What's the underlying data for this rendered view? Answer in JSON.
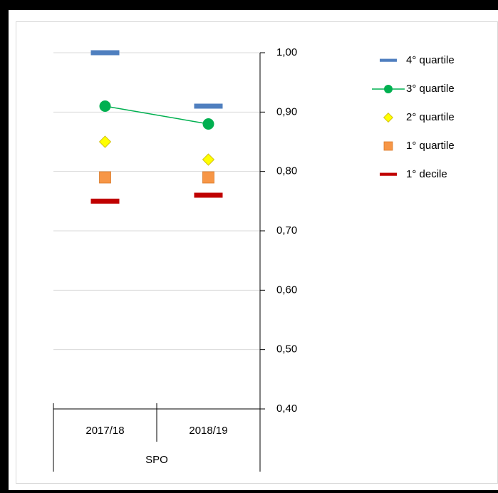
{
  "chart_data": {
    "type": "line",
    "categories": [
      "2017/18",
      "2018/19"
    ],
    "group": "SPO",
    "series": [
      {
        "name": "4° quartile",
        "color": "#4f7fbf",
        "marker": "dash",
        "line": false,
        "values": [
          1.0,
          0.91
        ]
      },
      {
        "name": "3° quartile",
        "color": "#00b050",
        "marker": "circle",
        "line": true,
        "values": [
          0.91,
          0.88
        ]
      },
      {
        "name": "2° quartile",
        "color": "#ffff00",
        "marker": "diamond",
        "line": false,
        "values": [
          0.85,
          0.82
        ]
      },
      {
        "name": "1° quartile",
        "color": "#f79646",
        "marker": "square",
        "line": false,
        "values": [
          0.79,
          0.79
        ]
      },
      {
        "name": "1° decile",
        "color": "#c00000",
        "marker": "dash",
        "line": false,
        "values": [
          0.75,
          0.76
        ]
      }
    ],
    "ylim": [
      0.4,
      1.0
    ],
    "yticks": [
      {
        "value": 0.4,
        "label": "0,40"
      },
      {
        "value": 0.5,
        "label": "0,50"
      },
      {
        "value": 0.6,
        "label": "0,60"
      },
      {
        "value": 0.7,
        "label": "0,70"
      },
      {
        "value": 0.8,
        "label": "0,80"
      },
      {
        "value": 0.9,
        "label": "0,90"
      },
      {
        "value": 1.0,
        "label": "1,00"
      }
    ],
    "grid": true,
    "y_axis_side": "right",
    "legend": "right"
  }
}
